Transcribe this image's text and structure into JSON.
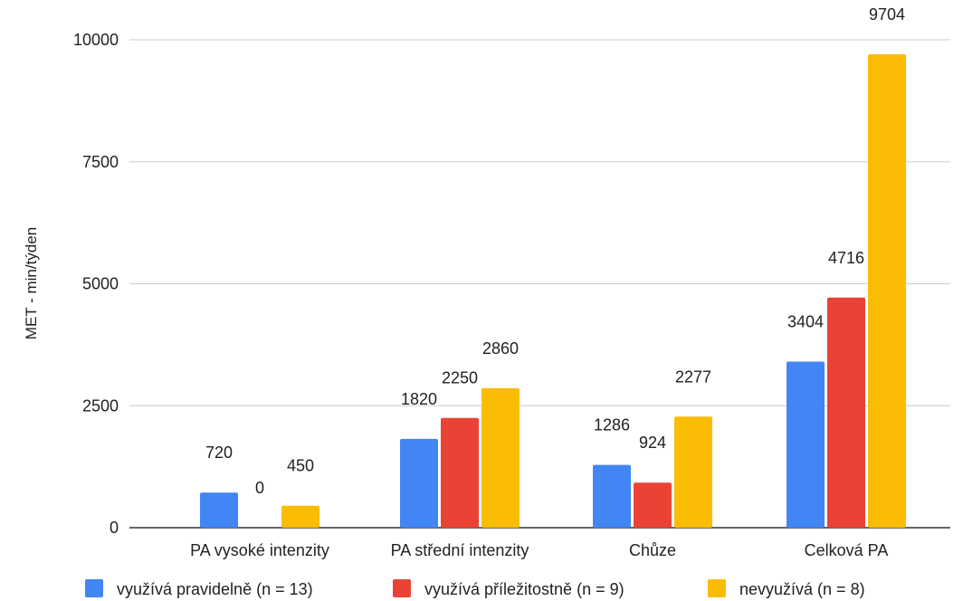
{
  "chart_data": {
    "type": "bar",
    "title": "",
    "xlabel": "",
    "ylabel": "MET - min/týden",
    "ylim": [
      0,
      10000
    ],
    "yticks": [
      0,
      2500,
      5000,
      7500,
      10000
    ],
    "grid": true,
    "legend_position": "bottom",
    "categories": [
      "PA vysoké intenzity",
      "PA střední intenzity",
      "Chůze",
      "Celková PA"
    ],
    "series": [
      {
        "name": "využívá pravidelně (n = 13)",
        "color": "#4285f4",
        "values": [
          720,
          1820,
          1286,
          3404
        ]
      },
      {
        "name": "využívá příležitostně (n = 9)",
        "color": "#ea4335",
        "values": [
          0,
          2250,
          924,
          4716
        ]
      },
      {
        "name": "nevyužívá (n = 8)",
        "color": "#fbbc04",
        "values": [
          450,
          2860,
          2277,
          9704
        ]
      }
    ]
  }
}
